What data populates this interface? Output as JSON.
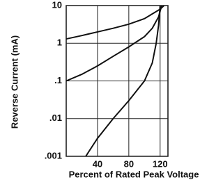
{
  "chart_data": {
    "type": "line",
    "y_label": "Reverse Current (mA)",
    "x_label": "Percent of Rated Peak Voltage",
    "xlim": [
      0,
      130
    ],
    "xticks": [
      40,
      80,
      120
    ],
    "ylim": [
      0.001,
      10
    ],
    "log_y": true,
    "grid": true,
    "yticks": [
      10,
      1,
      {
        "value": 0.1,
        "label": ".1"
      },
      {
        "value": 0.01,
        "label": ".01"
      },
      {
        "value": 0.001,
        "label": ".001"
      }
    ],
    "series": [
      {
        "color": "#111111",
        "x": [
          0,
          20,
          40,
          60,
          80,
          100,
          110,
          120,
          125
        ],
        "values": [
          1.3,
          1.6,
          2,
          2.5,
          3.2,
          4.5,
          6,
          8,
          10
        ]
      },
      {
        "color": "#111111",
        "x": [
          0,
          20,
          40,
          60,
          80,
          100,
          110,
          118,
          122
        ],
        "values": [
          0.1,
          0.15,
          0.25,
          0.45,
          0.8,
          1.5,
          2.5,
          5,
          10
        ]
      },
      {
        "color": "#111111",
        "x": [
          25,
          40,
          60,
          80,
          100,
          110,
          115,
          118,
          120
        ],
        "values": [
          0.001,
          0.003,
          0.01,
          0.03,
          0.1,
          0.3,
          1,
          3,
          10
        ]
      }
    ]
  }
}
